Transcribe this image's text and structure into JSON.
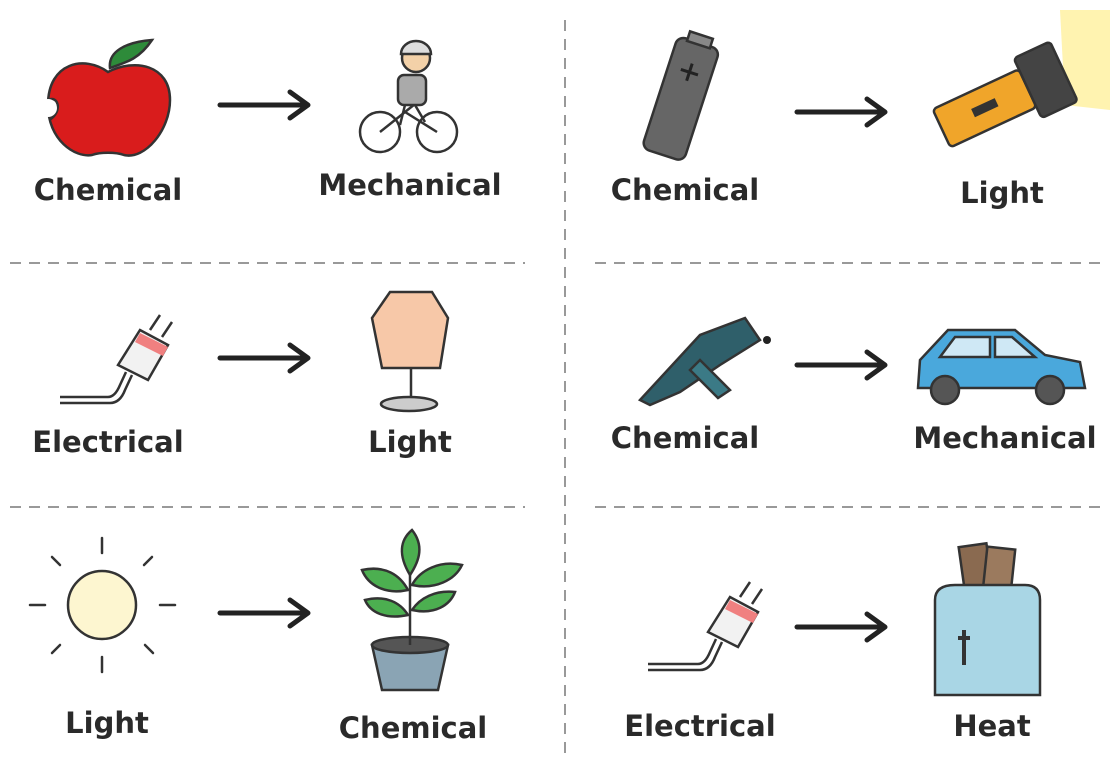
{
  "conversions": [
    {
      "from": "Chemical",
      "to": "Mechanical"
    },
    {
      "from": "Electrical",
      "to": "Light"
    },
    {
      "from": "Light",
      "to": "Chemical"
    },
    {
      "from": "Chemical",
      "to": "Light"
    },
    {
      "from": "Chemical",
      "to": "Mechanical"
    },
    {
      "from": "Electrical",
      "to": "Heat"
    }
  ]
}
